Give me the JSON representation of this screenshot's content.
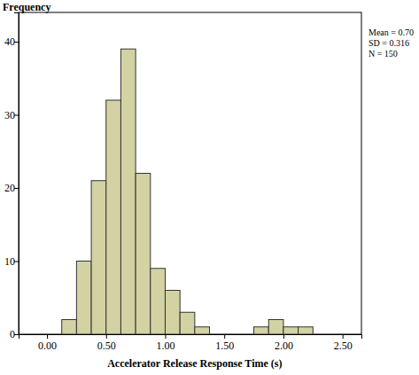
{
  "chart_data": {
    "type": "histogram",
    "y_label": "Frequency",
    "x_label": "Accelerator Release Response Time (s)",
    "annotations": [
      "Mean = 0.70",
      "SD = 0.316",
      "N = 150"
    ],
    "bins": [
      0.125,
      0.25,
      0.375,
      0.5,
      0.625,
      0.75,
      0.875,
      1.0,
      1.125,
      1.25,
      1.375,
      1.5,
      1.625,
      1.75,
      1.875,
      2.0,
      2.125,
      2.25
    ],
    "values": [
      2,
      10,
      21,
      32,
      39,
      22,
      9,
      6,
      3,
      1,
      0,
      0,
      0,
      1,
      2,
      1,
      1
    ],
    "color": "#d3d2a3",
    "xlim": [
      -0.24,
      2.66
    ],
    "xticks": [
      {
        "value": 0,
        "label": "0.00"
      },
      {
        "value": 0.5,
        "label": "0.50"
      },
      {
        "value": 1,
        "label": "1.00"
      },
      {
        "value": 1.5,
        "label": "1.50"
      },
      {
        "value": 2,
        "label": "2.00"
      },
      {
        "value": 2.5,
        "label": "2.50"
      }
    ],
    "ylim": [
      0,
      44
    ],
    "yticks": [
      0,
      10,
      20,
      30,
      40
    ],
    "grid": false
  }
}
